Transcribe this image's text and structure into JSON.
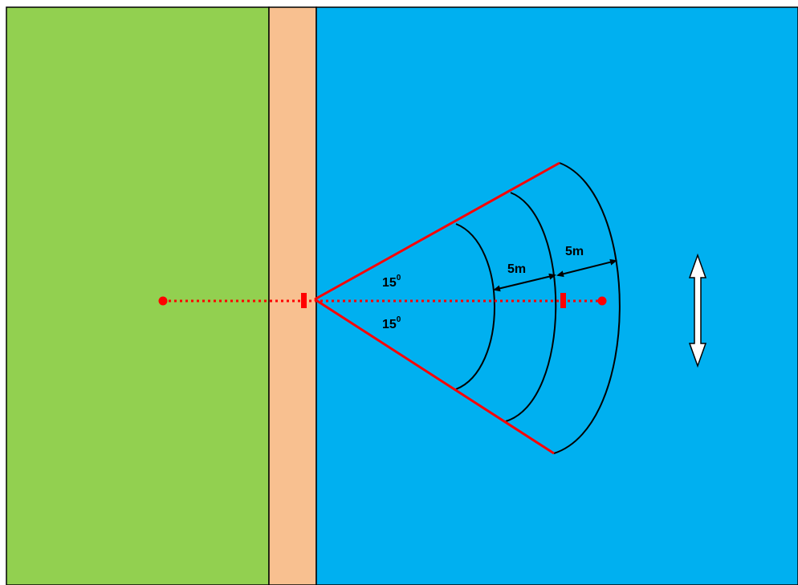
{
  "colors": {
    "land": "#92d050",
    "bank": "#f8c090",
    "water": "#00b0f0",
    "survey_line": "#ff0000",
    "arc": "#000000",
    "outline": "#000000",
    "current_arrow_fill": "#ffffff"
  },
  "icons": {
    "center_line_endpoint": "red-dot-marker",
    "stations": "red-bar-marker",
    "flow_indicator": "double-headed-arrow-icon",
    "spacing_indicator": "double-headed-arrow-icon"
  },
  "labels": {
    "upper_angle_value": "15",
    "upper_angle_unit": "0",
    "lower_angle_value": "15",
    "lower_angle_unit": "0",
    "inner_spacing": "5m",
    "outer_spacing": "5m"
  }
}
